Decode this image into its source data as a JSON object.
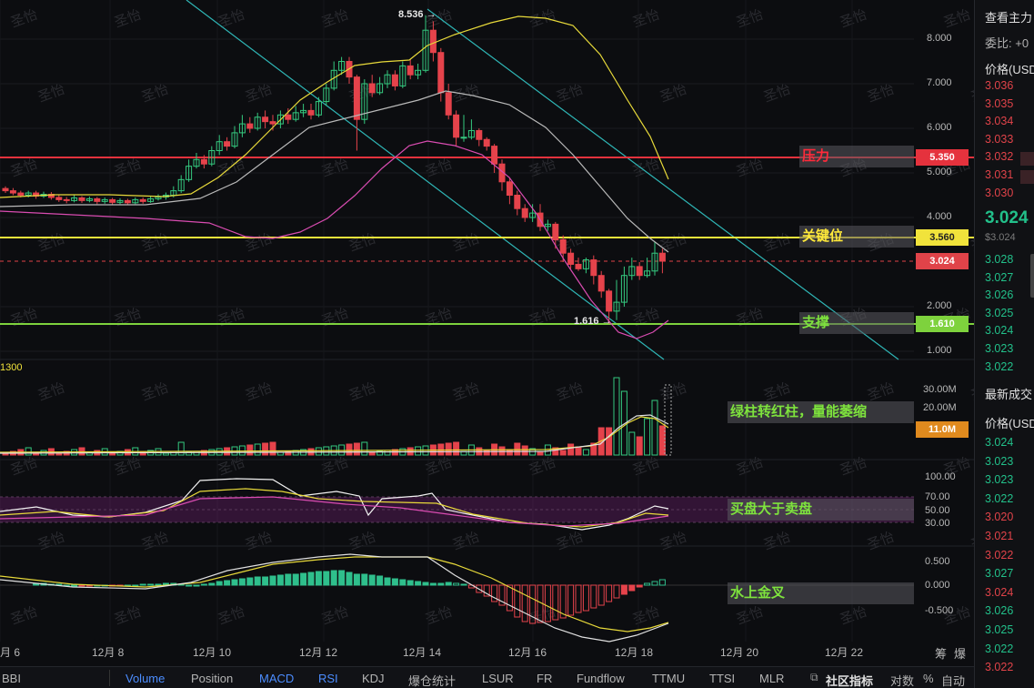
{
  "price_axis": {
    "ticks": [
      {
        "label": "8.000",
        "value": 8
      },
      {
        "label": "7.000",
        "value": 7
      },
      {
        "label": "6.000",
        "value": 6
      },
      {
        "label": "5.000",
        "value": 5
      },
      {
        "label": "4.000",
        "value": 4
      },
      {
        "label": "2.000",
        "value": 2
      },
      {
        "label": "1.000",
        "value": 1
      }
    ]
  },
  "volume_axis": {
    "ticks": [
      "30.00M",
      "20.00M"
    ]
  },
  "rsi_axis": {
    "ticks": [
      "100.00",
      "70.00",
      "50.00",
      "30.00"
    ]
  },
  "macd_axis": {
    "ticks": [
      "0.500",
      "0.000",
      "-0.500"
    ]
  },
  "x_axis": {
    "ticks": [
      "月 6",
      "12月 8",
      "12月 10",
      "12月 12",
      "12月 14",
      "12月 16",
      "12月 18",
      "12月 20",
      "12月 22"
    ]
  },
  "levels": {
    "resistance": {
      "label": "压力",
      "value": "5.350",
      "color": "#e5323d"
    },
    "key": {
      "label": "关键位",
      "value": "3.560",
      "color": "#f1e33b"
    },
    "current": {
      "value": "3.024",
      "color": "#e04349"
    },
    "support": {
      "label": "支撑",
      "value": "1.610",
      "color": "#7ed23d"
    }
  },
  "price_high": {
    "label": "8.536"
  },
  "price_low": {
    "label": "1.616"
  },
  "left_fragment": "1300",
  "annotations": {
    "volume": {
      "text": "绿柱转红柱，量能萎缩",
      "tag": "11.0M"
    },
    "rsi": {
      "text": "买盘大于卖盘"
    },
    "macd": {
      "text": "水上金叉"
    }
  },
  "watermark": "圣怡",
  "corner_chars": {
    "chip": "筹",
    "burst": "爆"
  },
  "bottom_tabs": [
    {
      "label": "BBI",
      "active": false
    },
    {
      "label": "Volume",
      "active": true
    },
    {
      "label": "Position",
      "active": false
    },
    {
      "label": "MACD",
      "active": true
    },
    {
      "label": "RSI",
      "active": true
    },
    {
      "label": "KDJ",
      "active": false
    },
    {
      "label": "爆仓统计",
      "active": false
    },
    {
      "label": "LSUR",
      "active": false
    },
    {
      "label": "FR",
      "active": false
    },
    {
      "label": "Fundflow",
      "active": false
    },
    {
      "label": "TTMU",
      "active": false
    },
    {
      "label": "TTSI",
      "active": false
    },
    {
      "label": "MLR",
      "active": false
    }
  ],
  "bottom_right": {
    "community": "社区指标",
    "compare": "对数",
    "percent": "%",
    "auto": "自动"
  },
  "right_panel": {
    "title": "查看主力",
    "ratio": "委比: +0",
    "price_header": "价格(USD",
    "asks": [
      "3.036",
      "3.035",
      "3.034",
      "3.033",
      "3.032",
      "3.031",
      "3.030"
    ],
    "current_price": "3.024",
    "current_sub": "$3.024",
    "bids": [
      "3.028",
      "3.027",
      "3.026",
      "3.025",
      "3.024",
      "3.023",
      "3.022"
    ],
    "trades_title": "最新成交",
    "trades_header": "价格(USD",
    "trades": [
      {
        "price": "3.024",
        "color": "#22c08a"
      },
      {
        "price": "3.023",
        "color": "#22c08a"
      },
      {
        "price": "3.023",
        "color": "#22c08a"
      },
      {
        "price": "3.022",
        "color": "#22c08a"
      },
      {
        "price": "3.020",
        "color": "#e04349"
      },
      {
        "price": "3.021",
        "color": "#e04349"
      },
      {
        "price": "3.022",
        "color": "#e04349"
      },
      {
        "price": "3.027",
        "color": "#22c08a"
      },
      {
        "price": "3.024",
        "color": "#e04349"
      },
      {
        "price": "3.026",
        "color": "#22c08a"
      },
      {
        "price": "3.025",
        "color": "#22c08a"
      },
      {
        "price": "3.022",
        "color": "#22c08a"
      },
      {
        "price": "3.022",
        "color": "#e04349"
      }
    ]
  }
}
